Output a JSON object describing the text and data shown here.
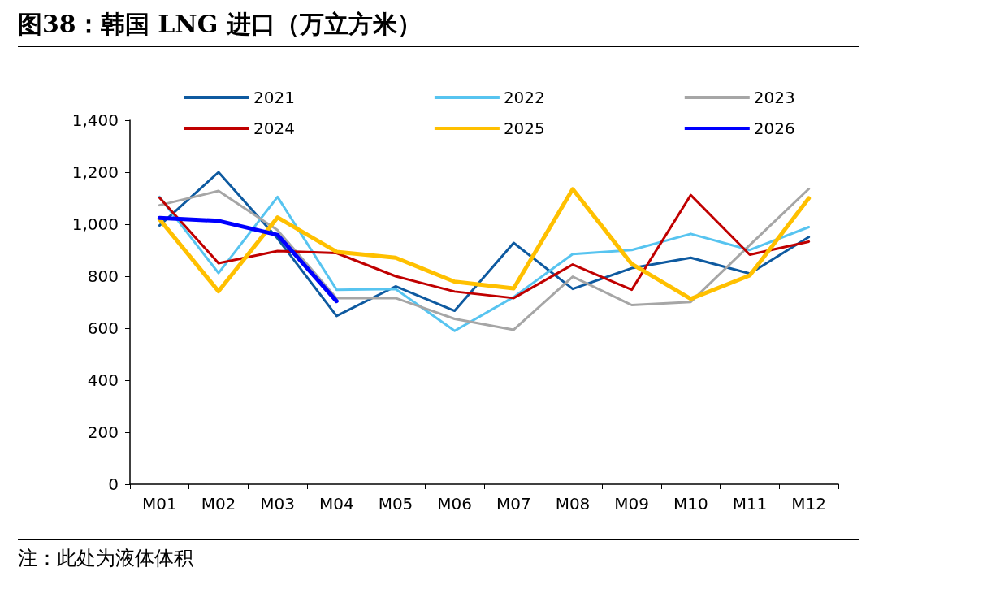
{
  "chart_data": {
    "type": "line",
    "title": "图38：韩国 LNG 进口（万立方米）",
    "annotations": [
      "注：此处为液体体积"
    ],
    "categories": [
      "M01",
      "M02",
      "M03",
      "M04",
      "M05",
      "M06",
      "M07",
      "M08",
      "M09",
      "M10",
      "M11",
      "M12"
    ],
    "series": [
      {
        "name": "2021",
        "color": "#0e5aa0",
        "values": [
          995,
          1200,
          945,
          647,
          761,
          667,
          928,
          751,
          831,
          871,
          810,
          951
        ]
      },
      {
        "name": "2022",
        "color": "#57c4f0",
        "values": [
          1105,
          812,
          1105,
          748,
          751,
          590,
          720,
          885,
          901,
          963,
          901,
          989
        ]
      },
      {
        "name": "2023",
        "color": "#a6a6a6",
        "values": [
          1073,
          1128,
          977,
          716,
          716,
          636,
          594,
          798,
          689,
          701,
          920,
          1136
        ]
      },
      {
        "name": "2024",
        "color": "#c00000",
        "values": [
          1102,
          850,
          897,
          889,
          800,
          741,
          716,
          845,
          748,
          1112,
          883,
          933
        ]
      },
      {
        "name": "2025",
        "color": "#ffc000",
        "values": [
          1019,
          742,
          1026,
          894,
          871,
          779,
          753,
          1135,
          847,
          713,
          803,
          1100
        ]
      },
      {
        "name": "2026",
        "color": "#0000ff",
        "values": [
          1024,
          1013,
          959,
          704,
          null,
          null,
          null,
          null,
          null,
          null,
          null,
          null
        ]
      }
    ],
    "ylim": [
      0,
      1400
    ],
    "yticks": [
      0,
      200,
      400,
      600,
      800,
      {
        "value": 1000,
        "label": "1,000"
      },
      {
        "value": 1200,
        "label": "1,200"
      },
      {
        "value": 1400,
        "label": "1,400"
      }
    ],
    "grid": false,
    "legend": "top",
    "marker": "none",
    "line_style": "solid"
  }
}
